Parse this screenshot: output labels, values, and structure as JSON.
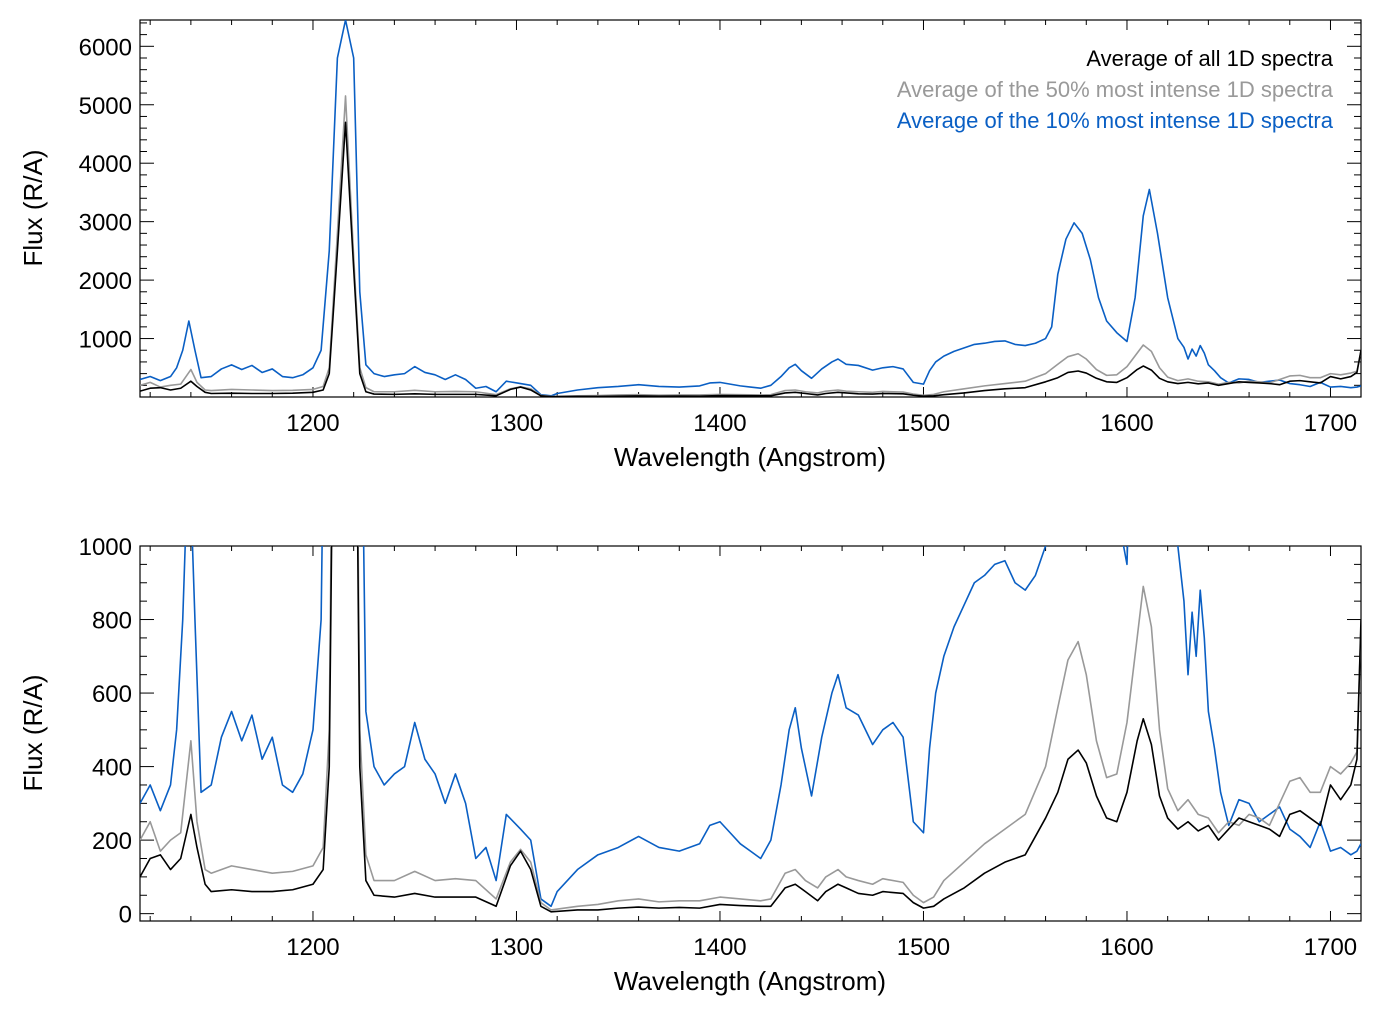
{
  "colors": {
    "all": "#000000",
    "top50": "#999999",
    "top10": "#0a5fc4",
    "axis": "#000000"
  },
  "chart_data": [
    {
      "type": "line",
      "panel": "top",
      "xlabel": "Wavelength (Angstrom)",
      "ylabel": "Flux (R/A)",
      "xlim": [
        1115,
        1715
      ],
      "ylim": [
        0,
        6450
      ],
      "xticks": [
        1200,
        1300,
        1400,
        1500,
        1600,
        1700
      ],
      "yticks": [
        1000,
        2000,
        3000,
        4000,
        5000,
        6000
      ],
      "legend_position": "top-right",
      "legend": [
        "Average of all 1D spectra",
        "Average of the 50% most intense 1D spectra",
        "Average of the 10% most intense 1D spectra"
      ]
    },
    {
      "type": "line",
      "panel": "bottom",
      "xlabel": "Wavelength (Angstrom)",
      "ylabel": "Flux (R/A)",
      "xlim": [
        1115,
        1715
      ],
      "ylim": [
        -20,
        1000
      ],
      "xticks": [
        1200,
        1300,
        1400,
        1500,
        1600,
        1700
      ],
      "yticks": [
        0,
        200,
        400,
        600,
        800,
        1000
      ]
    }
  ],
  "series": [
    {
      "name": "Average of all 1D spectra",
      "color_key": "all",
      "x": [
        1115,
        1120,
        1125,
        1130,
        1135,
        1140,
        1143,
        1147,
        1150,
        1160,
        1170,
        1180,
        1190,
        1200,
        1205,
        1208,
        1212,
        1216,
        1220,
        1223,
        1226,
        1230,
        1240,
        1250,
        1260,
        1270,
        1280,
        1290,
        1297,
        1302,
        1307,
        1312,
        1317,
        1330,
        1340,
        1350,
        1360,
        1370,
        1380,
        1390,
        1400,
        1410,
        1420,
        1425,
        1432,
        1437,
        1442,
        1448,
        1452,
        1458,
        1462,
        1468,
        1475,
        1480,
        1490,
        1495,
        1500,
        1505,
        1510,
        1520,
        1530,
        1540,
        1550,
        1560,
        1566,
        1571,
        1576,
        1580,
        1585,
        1590,
        1595,
        1600,
        1605,
        1608,
        1612,
        1616,
        1620,
        1625,
        1630,
        1635,
        1640,
        1645,
        1650,
        1655,
        1660,
        1665,
        1670,
        1675,
        1680,
        1685,
        1690,
        1695,
        1700,
        1705,
        1710,
        1713,
        1715
      ],
      "y": [
        100,
        150,
        160,
        120,
        150,
        270,
        180,
        80,
        60,
        65,
        60,
        60,
        65,
        80,
        120,
        400,
        2500,
        4700,
        2200,
        400,
        90,
        50,
        45,
        55,
        45,
        45,
        45,
        20,
        130,
        170,
        120,
        20,
        5,
        10,
        10,
        15,
        18,
        15,
        17,
        15,
        25,
        22,
        20,
        20,
        70,
        80,
        60,
        35,
        60,
        80,
        70,
        55,
        50,
        60,
        55,
        30,
        15,
        20,
        40,
        70,
        110,
        140,
        160,
        260,
        330,
        420,
        445,
        410,
        320,
        260,
        250,
        330,
        470,
        530,
        460,
        320,
        260,
        230,
        250,
        225,
        240,
        200,
        230,
        260,
        250,
        240,
        230,
        210,
        270,
        280,
        260,
        240,
        350,
        310,
        350,
        420,
        800
      ]
    },
    {
      "name": "Average of the 50% most intense 1D spectra",
      "color_key": "top50",
      "x": [
        1115,
        1120,
        1125,
        1130,
        1135,
        1140,
        1143,
        1147,
        1150,
        1160,
        1170,
        1180,
        1190,
        1200,
        1205,
        1208,
        1212,
        1216,
        1220,
        1223,
        1226,
        1230,
        1240,
        1250,
        1260,
        1270,
        1280,
        1290,
        1297,
        1302,
        1307,
        1312,
        1317,
        1330,
        1340,
        1350,
        1360,
        1370,
        1380,
        1390,
        1400,
        1410,
        1420,
        1425,
        1432,
        1437,
        1442,
        1448,
        1452,
        1458,
        1462,
        1468,
        1475,
        1480,
        1490,
        1495,
        1500,
        1505,
        1510,
        1520,
        1530,
        1540,
        1550,
        1560,
        1566,
        1571,
        1576,
        1580,
        1585,
        1590,
        1595,
        1600,
        1605,
        1608,
        1612,
        1616,
        1620,
        1625,
        1630,
        1635,
        1640,
        1645,
        1650,
        1655,
        1660,
        1665,
        1670,
        1675,
        1680,
        1685,
        1690,
        1695,
        1700,
        1705,
        1710,
        1713,
        1715
      ],
      "y": [
        200,
        250,
        170,
        200,
        220,
        470,
        250,
        120,
        110,
        130,
        120,
        110,
        115,
        130,
        180,
        500,
        2800,
        5150,
        2400,
        500,
        160,
        90,
        90,
        115,
        90,
        95,
        90,
        40,
        140,
        175,
        140,
        30,
        10,
        20,
        25,
        35,
        40,
        32,
        35,
        35,
        45,
        40,
        35,
        40,
        110,
        120,
        90,
        70,
        100,
        120,
        100,
        90,
        80,
        95,
        85,
        50,
        30,
        45,
        90,
        140,
        190,
        230,
        270,
        400,
        560,
        690,
        740,
        650,
        470,
        370,
        380,
        520,
        750,
        890,
        780,
        500,
        340,
        280,
        310,
        270,
        260,
        220,
        250,
        240,
        270,
        260,
        240,
        300,
        360,
        370,
        330,
        330,
        400,
        380,
        410,
        440,
        780
      ]
    },
    {
      "name": "Average of the 10% most intense 1D spectra",
      "color_key": "top10",
      "x": [
        1115,
        1120,
        1125,
        1130,
        1133,
        1136,
        1139,
        1142,
        1145,
        1150,
        1155,
        1160,
        1165,
        1170,
        1175,
        1180,
        1185,
        1190,
        1195,
        1200,
        1204,
        1208,
        1212,
        1216,
        1220,
        1223,
        1226,
        1230,
        1235,
        1240,
        1245,
        1250,
        1255,
        1260,
        1265,
        1270,
        1275,
        1280,
        1285,
        1290,
        1295,
        1302,
        1307,
        1312,
        1317,
        1320,
        1330,
        1340,
        1350,
        1360,
        1370,
        1380,
        1390,
        1395,
        1400,
        1405,
        1410,
        1415,
        1420,
        1425,
        1430,
        1434,
        1437,
        1440,
        1445,
        1450,
        1455,
        1458,
        1462,
        1468,
        1475,
        1480,
        1485,
        1490,
        1495,
        1500,
        1503,
        1506,
        1510,
        1515,
        1520,
        1525,
        1530,
        1535,
        1540,
        1545,
        1550,
        1555,
        1560,
        1563,
        1566,
        1570,
        1574,
        1578,
        1582,
        1586,
        1590,
        1595,
        1600,
        1604,
        1608,
        1611,
        1615,
        1620,
        1625,
        1628,
        1630,
        1632,
        1634,
        1636,
        1638,
        1640,
        1643,
        1646,
        1650,
        1655,
        1660,
        1665,
        1670,
        1675,
        1680,
        1685,
        1690,
        1695,
        1700,
        1705,
        1710,
        1713,
        1715
      ],
      "y": [
        300,
        350,
        280,
        350,
        500,
        800,
        1300,
        800,
        330,
        350,
        480,
        550,
        470,
        540,
        420,
        480,
        350,
        330,
        380,
        500,
        800,
        2500,
        5800,
        6450,
        5800,
        1800,
        550,
        400,
        350,
        380,
        400,
        520,
        420,
        380,
        300,
        380,
        300,
        150,
        180,
        90,
        270,
        230,
        200,
        40,
        20,
        60,
        120,
        160,
        180,
        210,
        180,
        170,
        190,
        240,
        250,
        220,
        190,
        170,
        150,
        200,
        350,
        500,
        560,
        450,
        320,
        480,
        600,
        650,
        560,
        540,
        460,
        500,
        520,
        480,
        250,
        220,
        450,
        600,
        700,
        780,
        840,
        900,
        920,
        950,
        960,
        900,
        880,
        920,
        1000,
        1200,
        2100,
        2700,
        2980,
        2800,
        2350,
        1700,
        1300,
        1100,
        950,
        1700,
        3100,
        3550,
        2800,
        1700,
        1000,
        850,
        650,
        820,
        700,
        880,
        750,
        550,
        450,
        330,
        240,
        310,
        300,
        250,
        270,
        290,
        230,
        210,
        180,
        250,
        170,
        180,
        160,
        170,
        190
      ]
    }
  ]
}
